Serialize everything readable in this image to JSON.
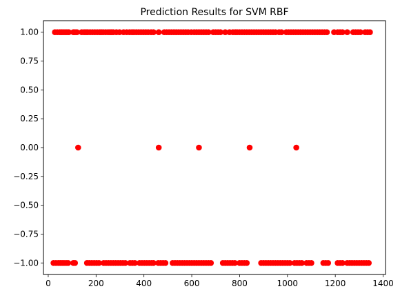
{
  "chart_data": {
    "type": "scatter",
    "title": "Prediction Results for SVM RBF",
    "xlabel": "",
    "ylabel": "",
    "xlim": [
      -20,
      1410
    ],
    "ylim": [
      -1.1,
      1.1
    ],
    "xticks": [
      0,
      200,
      400,
      600,
      800,
      1000,
      1200,
      1400
    ],
    "xtick_labels": [
      "0",
      "200",
      "400",
      "600",
      "800",
      "1000",
      "1200",
      "1400"
    ],
    "yticks": [
      1.0,
      0.75,
      0.5,
      0.25,
      0.0,
      -0.25,
      -0.5,
      -0.75,
      -1.0
    ],
    "ytick_labels": [
      "1.00",
      "0.75",
      "0.50",
      "0.25",
      "0.00",
      "−0.25",
      "−0.50",
      "−0.75",
      "−1.00"
    ],
    "grid": false,
    "marker_color": "#ff0000",
    "series": [
      {
        "y_value": 1,
        "x": [
          28,
          38,
          48,
          55,
          62,
          70,
          78,
          86,
          105,
          112,
          120,
          140,
          150,
          158,
          165,
          175,
          185,
          195,
          205,
          215,
          222,
          230,
          240,
          250,
          258,
          265,
          272,
          285,
          298,
          315,
          328,
          340,
          350,
          358,
          368,
          378,
          388,
          398,
          408,
          418,
          430,
          440,
          462,
          485,
          495,
          505,
          515,
          525,
          535,
          545,
          555,
          565,
          575,
          585,
          598,
          610,
          620,
          630,
          640,
          650,
          660,
          670,
          690,
          700,
          710,
          720,
          740,
          758,
          772,
          782,
          790,
          800,
          810,
          820,
          830,
          840,
          850,
          860,
          870,
          880,
          890,
          900,
          910,
          920,
          930,
          940,
          950,
          965,
          975,
          995,
          1005,
          1015,
          1025,
          1035,
          1045,
          1055,
          1065,
          1075,
          1085,
          1095,
          1105,
          1115,
          1125,
          1135,
          1145,
          1155,
          1165,
          1195,
          1210,
          1220,
          1230,
          1250,
          1275,
          1285,
          1295,
          1305,
          1325,
          1335,
          1345
        ]
      },
      {
        "y_value": 0,
        "x": [
          125,
          462,
          630,
          842,
          1037
        ]
      },
      {
        "y_value": -1,
        "x": [
          22,
          32,
          42,
          50,
          58,
          66,
          75,
          83,
          105,
          112,
          162,
          172,
          182,
          192,
          202,
          212,
          232,
          242,
          252,
          262,
          272,
          282,
          292,
          302,
          312,
          322,
          342,
          352,
          362,
          382,
          392,
          402,
          412,
          422,
          432,
          440,
          460,
          470,
          480,
          490,
          520,
          530,
          540,
          550,
          560,
          570,
          580,
          590,
          600,
          610,
          620,
          630,
          640,
          650,
          660,
          670,
          680,
          730,
          740,
          750,
          760,
          770,
          780,
          800,
          810,
          820,
          830,
          890,
          900,
          910,
          920,
          930,
          940,
          950,
          960,
          970,
          980,
          990,
          1000,
          1010,
          1030,
          1040,
          1050,
          1060,
          1080,
          1090,
          1100,
          1150,
          1160,
          1170,
          1210,
          1220,
          1230,
          1250,
          1260,
          1270,
          1280,
          1290,
          1300,
          1310,
          1320,
          1330,
          1340
        ]
      }
    ]
  }
}
